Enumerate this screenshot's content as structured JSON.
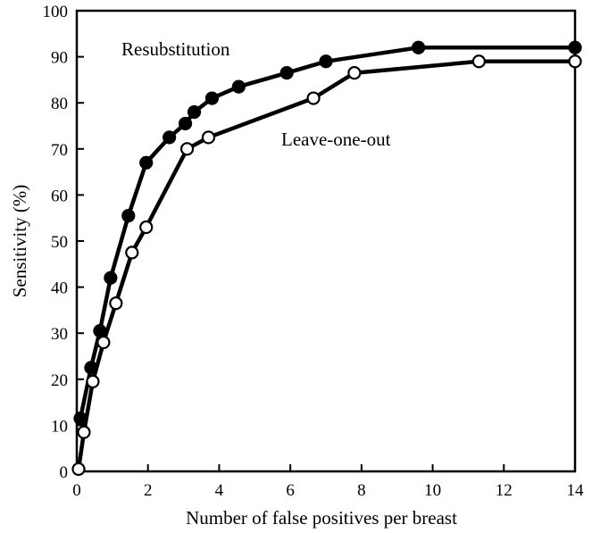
{
  "chart_data": {
    "type": "line",
    "title": "",
    "xlabel": "Number of false positives per breast",
    "ylabel": "Sensitivity (%)",
    "xlim": [
      0,
      14
    ],
    "ylim": [
      0,
      100
    ],
    "xticks": [
      0,
      2,
      4,
      6,
      8,
      10,
      12,
      14
    ],
    "yticks": [
      0,
      10,
      20,
      30,
      40,
      50,
      60,
      70,
      80,
      90,
      100
    ],
    "grid": false,
    "legend": "none (series labeled directly on plot)",
    "series": [
      {
        "name": "Resubstitution",
        "marker": "filled-circle",
        "color": "#000000",
        "label_position": "upper-left",
        "x": [
          0.1,
          0.4,
          0.65,
          0.95,
          1.45,
          1.95,
          2.6,
          3.05,
          3.3,
          3.8,
          4.55,
          5.9,
          7.0,
          9.6,
          14.0
        ],
        "y": [
          11.5,
          22.5,
          30.5,
          42.0,
          55.5,
          67.0,
          72.5,
          75.5,
          78.0,
          81.0,
          83.5,
          86.5,
          89.0,
          92.0,
          92.0
        ]
      },
      {
        "name": "Leave-one-out",
        "marker": "open-circle",
        "color": "#000000",
        "label_position": "middle",
        "x": [
          0.05,
          0.2,
          0.45,
          0.75,
          1.1,
          1.55,
          1.95,
          3.1,
          3.7,
          6.65,
          7.8,
          11.3,
          14.0
        ],
        "y": [
          0.5,
          8.5,
          19.5,
          28.0,
          36.5,
          47.5,
          53.0,
          70.0,
          72.5,
          81.0,
          86.5,
          89.0,
          89.0
        ]
      }
    ]
  }
}
